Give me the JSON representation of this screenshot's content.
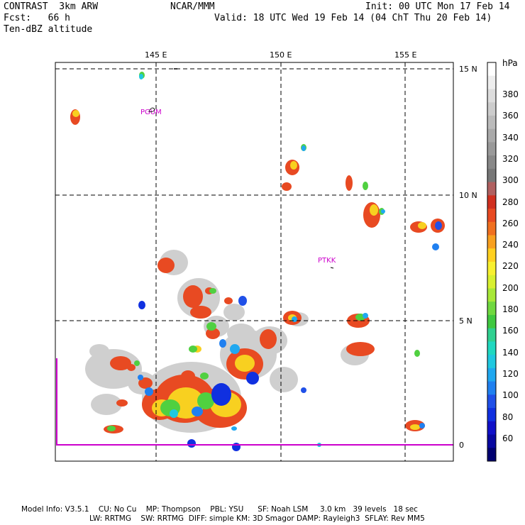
{
  "header": {
    "product": "CONTRAST",
    "model": "3km ARW",
    "org": "NCAR/MMM",
    "init": "Init: 00 UTC Mon 17 Feb 14",
    "fcst_label": "Fcst:",
    "fcst_value": "66 h",
    "valid": "Valid: 18 UTC Wed 19 Feb 14 (04 ChT Thu 20 Feb 14)",
    "field": "Ten-dBZ altitude"
  },
  "axes": {
    "lon_labels": [
      "145 E",
      "150 E",
      "155 E"
    ],
    "lat_labels": [
      "15 N",
      "10 N",
      "5 N",
      "0"
    ]
  },
  "stations": [
    "PGUM",
    "PTKK"
  ],
  "colorbar": {
    "unit": "hPa",
    "labels": [
      "380",
      "360",
      "340",
      "320",
      "300",
      "280",
      "260",
      "240",
      "220",
      "200",
      "180",
      "160",
      "140",
      "120",
      "100",
      "80",
      "60"
    ],
    "colors": [
      "#ffffff",
      "#eeeeee",
      "#dddddd",
      "#cccccc",
      "#bbbbbb",
      "#aaaaaa",
      "#999999",
      "#888888",
      "#777777",
      "#b06060",
      "#d03020",
      "#e84a22",
      "#f07020",
      "#f8a020",
      "#ffd020",
      "#f8f030",
      "#d8f030",
      "#a8e838",
      "#70d840",
      "#40c840",
      "#30d090",
      "#20d8c0",
      "#20c8e0",
      "#20a8f0",
      "#2080f0",
      "#2050e8",
      "#1030e0",
      "#1010c8",
      "#0808a0",
      "#000070"
    ]
  },
  "footer": {
    "line1": "Model Info: V3.5.1    CU: No Cu    MP: Thompson    PBL: YSU      SF: Noah LSM     3.0 km   39 levels   18 sec",
    "line2": "LW: RRTMG    SW: RRTMG  DIFF: simple KM: 3D Smagor DAMP: Rayleigh3  SFLAY: Rev MM5"
  }
}
